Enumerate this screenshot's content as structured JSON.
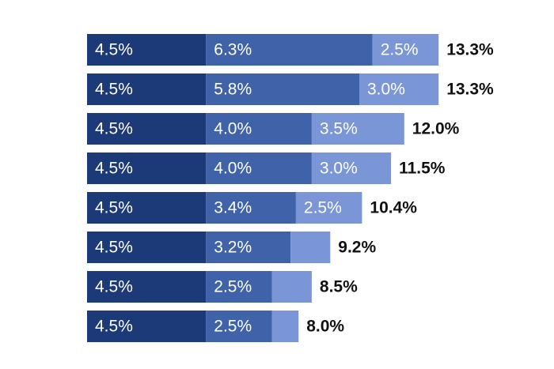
{
  "chart_data": {
    "type": "bar",
    "orientation": "horizontal",
    "stacked": true,
    "grid": false,
    "legend": "none",
    "series": [
      {
        "color": "#1d3a78",
        "values": [
          4.5,
          4.5,
          4.5,
          4.5,
          4.5,
          4.5,
          4.5,
          4.5
        ],
        "labels": [
          "4.5%",
          "4.5%",
          "4.5%",
          "4.5%",
          "4.5%",
          "4.5%",
          "4.5%",
          "4.5%"
        ]
      },
      {
        "color": "#3f62a9",
        "values": [
          6.3,
          5.8,
          4.0,
          4.0,
          3.4,
          3.2,
          2.5,
          2.5
        ],
        "labels": [
          "6.3%",
          "5.8%",
          "4.0%",
          "4.0%",
          "3.4%",
          "3.2%",
          "2.5%",
          "2.5%"
        ]
      },
      {
        "color": "#7b96d6",
        "values": [
          2.5,
          3.0,
          3.5,
          3.0,
          2.5,
          1.5,
          1.5,
          1.0
        ],
        "labels": [
          "2.5%",
          "3.0%",
          "3.5%",
          "3.0%",
          "2.5%",
          "",
          "",
          ""
        ]
      }
    ],
    "totals": [
      13.3,
      13.3,
      12.0,
      11.5,
      10.4,
      9.2,
      8.5,
      8.0
    ],
    "total_labels": [
      "13.3%",
      "13.3%",
      "12.0%",
      "11.5%",
      "10.4%",
      "9.2%",
      "8.5%",
      "8.0%"
    ],
    "xlim": [
      0,
      13.3
    ]
  }
}
